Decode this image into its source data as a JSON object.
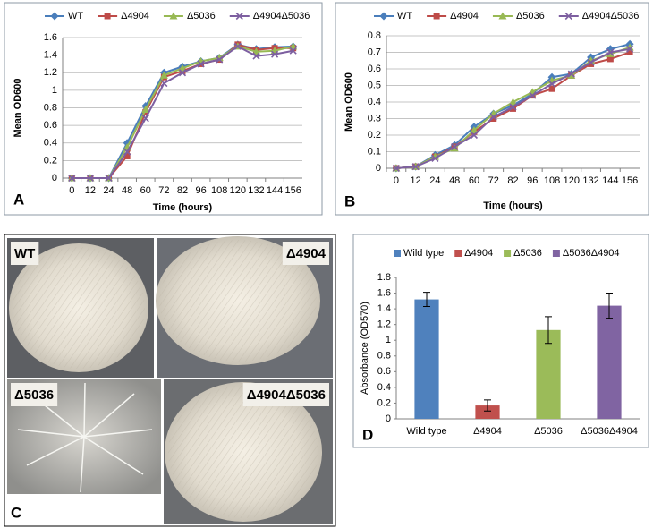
{
  "chart_data": [
    {
      "type": "line",
      "panel_label": "A",
      "xlabel": "Time (hours)",
      "ylabel": "Mean OD600",
      "categories": [
        "0",
        "12",
        "24",
        "48",
        "60",
        "72",
        "82",
        "96",
        "108",
        "120",
        "132",
        "144",
        "156"
      ],
      "ylim": [
        0,
        1.6
      ],
      "yticks": [
        0,
        0.2,
        0.4,
        0.6,
        0.8,
        1,
        1.2,
        1.4,
        1.6
      ],
      "grid": true,
      "legend": "top",
      "series": [
        {
          "name": "WT",
          "color": "#4a7ebb",
          "marker": "diamond",
          "values": [
            0,
            0,
            0,
            0.4,
            0.82,
            1.2,
            1.27,
            1.33,
            1.37,
            1.52,
            1.47,
            1.49,
            1.5
          ]
        },
        {
          "name": "Δ4904",
          "color": "#be4b48",
          "marker": "square",
          "values": [
            0,
            0,
            0,
            0.25,
            0.75,
            1.15,
            1.22,
            1.3,
            1.35,
            1.52,
            1.46,
            1.48,
            1.48
          ]
        },
        {
          "name": "Δ5036",
          "color": "#98b954",
          "marker": "triangle",
          "values": [
            0,
            0,
            0,
            0.35,
            0.78,
            1.17,
            1.25,
            1.33,
            1.37,
            1.5,
            1.44,
            1.45,
            1.5
          ]
        },
        {
          "name": "Δ4904Δ5036",
          "color": "#7d5fa0",
          "marker": "x",
          "values": [
            0,
            0,
            0,
            0.3,
            0.68,
            1.08,
            1.2,
            1.3,
            1.35,
            1.5,
            1.39,
            1.41,
            1.45
          ]
        }
      ]
    },
    {
      "type": "line",
      "panel_label": "B",
      "xlabel": "Time (hours)",
      "ylabel": "Mean OD600",
      "categories": [
        "0",
        "12",
        "24",
        "48",
        "60",
        "72",
        "82",
        "96",
        "108",
        "120",
        "132",
        "144",
        "156"
      ],
      "ylim": [
        0,
        0.8
      ],
      "yticks": [
        0,
        0.1,
        0.2,
        0.3,
        0.4,
        0.5,
        0.6,
        0.7,
        0.8
      ],
      "grid": true,
      "legend": "top",
      "series": [
        {
          "name": "WT",
          "color": "#4a7ebb",
          "marker": "diamond",
          "values": [
            0,
            0.01,
            0.08,
            0.14,
            0.25,
            0.33,
            0.38,
            0.45,
            0.55,
            0.57,
            0.67,
            0.72,
            0.75
          ]
        },
        {
          "name": "Δ4904",
          "color": "#be4b48",
          "marker": "square",
          "values": [
            0,
            0.01,
            0.07,
            0.13,
            0.22,
            0.3,
            0.36,
            0.44,
            0.48,
            0.56,
            0.63,
            0.66,
            0.7
          ]
        },
        {
          "name": "Δ5036",
          "color": "#98b954",
          "marker": "triangle",
          "values": [
            0,
            0.01,
            0.07,
            0.12,
            0.23,
            0.33,
            0.4,
            0.46,
            0.53,
            0.56,
            0.65,
            0.69,
            0.73
          ]
        },
        {
          "name": "Δ4904Δ5036",
          "color": "#7d5fa0",
          "marker": "x",
          "values": [
            0,
            0.01,
            0.06,
            0.13,
            0.2,
            0.31,
            0.37,
            0.44,
            0.51,
            0.57,
            0.64,
            0.7,
            0.72
          ]
        }
      ]
    },
    {
      "type": "bar",
      "panel_label": "D",
      "ylabel": "Absorbance (OD570)",
      "categories": [
        "Wild type",
        "Δ4904",
        "Δ5036",
        "Δ5036Δ4904"
      ],
      "values": [
        1.52,
        0.17,
        1.13,
        1.44
      ],
      "errors": [
        0.09,
        0.07,
        0.17,
        0.16
      ],
      "colors": [
        "#4f81bd",
        "#c0504d",
        "#9bbb59",
        "#8064a2"
      ],
      "ylim": [
        0,
        1.8
      ],
      "yticks": [
        0,
        0.2,
        0.4,
        0.6,
        0.8,
        1,
        1.2,
        1.4,
        1.6,
        1.8
      ],
      "grid": false,
      "legend": "top"
    }
  ],
  "photo_panel": {
    "panel_label": "C",
    "tiles": [
      "WT",
      "Δ4904",
      "Δ5036",
      "Δ4904Δ5036"
    ]
  }
}
